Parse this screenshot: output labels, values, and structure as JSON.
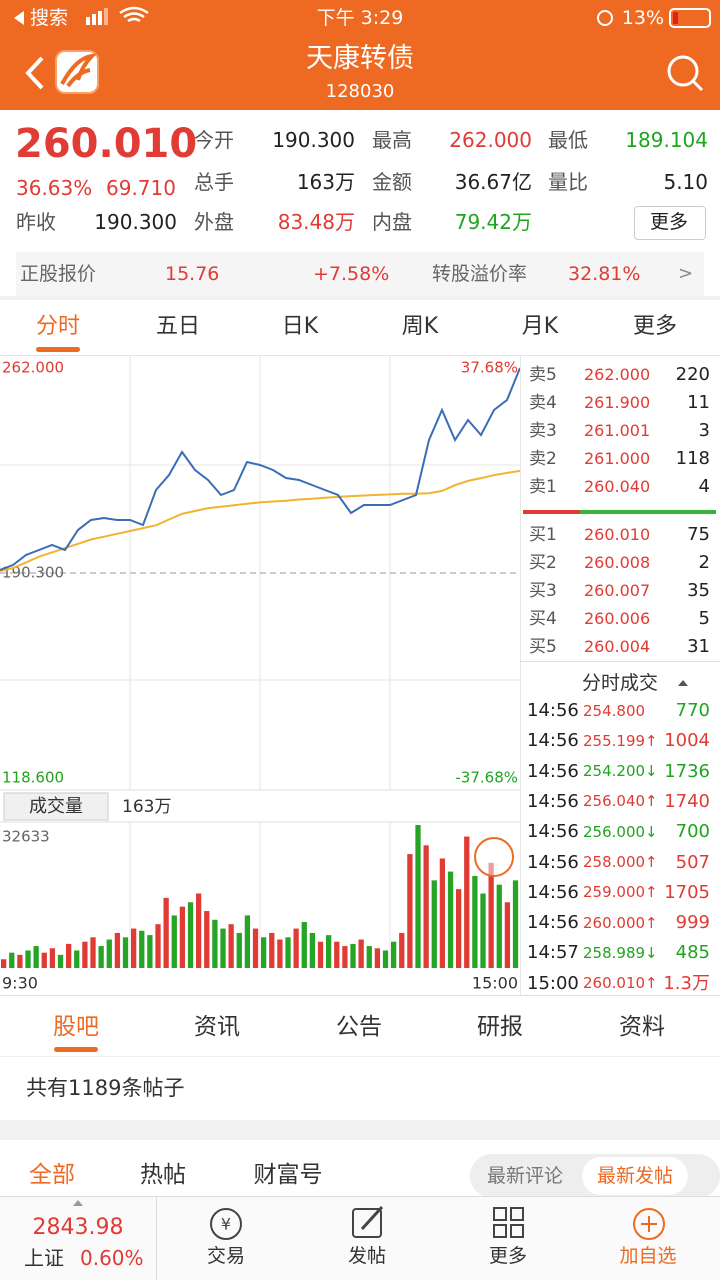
{
  "status_bar": {
    "carrier": "搜索",
    "time": "下午 3:29",
    "battery": "13%"
  },
  "header": {
    "title": "天康转债",
    "code": "128030"
  },
  "quote": {
    "price": "260.010",
    "change_pct": "36.63%",
    "change": "69.710",
    "fields": [
      {
        "label": "今开",
        "value": "190.300"
      },
      {
        "label": "最高",
        "value": "262.000"
      },
      {
        "label": "最低",
        "value": "189.104"
      },
      {
        "label": "总手",
        "value": "163万"
      },
      {
        "label": "金额",
        "value": "36.67亿"
      },
      {
        "label": "量比",
        "value": "5.10"
      },
      {
        "label": "昨收",
        "value": "190.300"
      },
      {
        "label": "外盘",
        "value": "83.48万"
      },
      {
        "label": "内盘",
        "value": "79.42万"
      }
    ],
    "more": "更多"
  },
  "stock_row": {
    "label": "正股报价",
    "price": "15.76",
    "change": "+7.58%",
    "premium_label": "转股溢价率",
    "premium": "32.81%",
    "arrow": ">"
  },
  "chart_tabs": [
    "分时",
    "五日",
    "日K",
    "周K",
    "月K",
    "更多"
  ],
  "chart_data": [
    {
      "type": "line",
      "ylim": [
        118.6,
        262.0
      ],
      "yticks": [
        {
          "value": 118.6,
          "label": "118.600"
        },
        {
          "value": 190.3,
          "label": "190.300"
        },
        {
          "value": 262.0,
          "label": "262.000"
        }
      ],
      "y2lim": [
        -37.68,
        37.68
      ],
      "y2ticks": [
        {
          "value": -37.68,
          "label": "-37.68%"
        },
        {
          "value": 37.68,
          "label": "37.68%"
        }
      ],
      "series": [
        {
          "color": "#3a6db5",
          "values": [
            191.34,
            193.09,
            196.59,
            198.34,
            200.09,
            198.34,
            205.33,
            208.83,
            209.53,
            208.83,
            208.83,
            207.08,
            219.32,
            224.57,
            232.62,
            226.32,
            222.82,
            217.58,
            219.32,
            229.12,
            228.07,
            226.32,
            223.52,
            222.82,
            221.07,
            219.32,
            217.58,
            211.28,
            214.08,
            214.08,
            214.08,
            215.83,
            217.58,
            236.81,
            247.31,
            236.81,
            243.81,
            238.56,
            247.31,
            250.81,
            262.0
          ]
        },
        {
          "color": "#f4b22e",
          "values": [
            191,
            192,
            194,
            196,
            197.5,
            199,
            200.5,
            202,
            203,
            204,
            205,
            206,
            207,
            209,
            211,
            212,
            213,
            213.5,
            214,
            214.5,
            215,
            215.3,
            215.6,
            216,
            216.3,
            216.6,
            216.9,
            217.2,
            217.4,
            217.6,
            217.8,
            218,
            218,
            218.2,
            219,
            221,
            222.5,
            223.5,
            224.5,
            225.3,
            226
          ]
        }
      ]
    },
    {
      "type": "bar",
      "label": "成交量",
      "total": "163万",
      "ylim": [
        0,
        32633
      ],
      "yticks": [
        32633
      ],
      "x_labels": [
        "9:30",
        "15:00"
      ],
      "values": [
        2000,
        3500,
        3000,
        4000,
        5000,
        3500,
        4500,
        3000,
        5500,
        4000,
        6000,
        7000,
        5000,
        6500,
        8000,
        7000,
        9000,
        8500,
        7500,
        10000,
        16000,
        12000,
        14000,
        15000,
        17000,
        13000,
        11000,
        9000,
        10000,
        8000,
        12000,
        9000,
        7000,
        8000,
        6500,
        7000,
        9000,
        10500,
        8000,
        6000,
        7500,
        6000,
        5000,
        5500,
        6500,
        5000,
        4500,
        4000,
        6000,
        8000,
        26000,
        32633,
        28000,
        20000,
        25000,
        22000,
        18000,
        30000,
        21000,
        17000,
        24000,
        19000,
        15000,
        20000
      ],
      "colors": [
        "#e03b35",
        "#26a426",
        "#e03b35",
        "#26a426",
        "#26a426",
        "#e03b35",
        "#e03b35",
        "#26a426",
        "#e03b35",
        "#26a426",
        "#e03b35",
        "#e03b35",
        "#26a426",
        "#26a426",
        "#e03b35",
        "#26a426",
        "#e03b35",
        "#26a426",
        "#26a426",
        "#e03b35",
        "#e03b35",
        "#26a426",
        "#e03b35",
        "#26a426",
        "#e03b35",
        "#e03b35",
        "#26a426",
        "#26a426",
        "#e03b35",
        "#26a426",
        "#26a426",
        "#e03b35",
        "#26a426",
        "#e03b35",
        "#e03b35",
        "#26a426",
        "#e03b35",
        "#26a426",
        "#26a426",
        "#e03b35",
        "#26a426",
        "#e03b35",
        "#e03b35",
        "#26a426",
        "#e03b35",
        "#26a426",
        "#e03b35",
        "#26a426",
        "#26a426",
        "#e03b35",
        "#e03b35",
        "#26a426",
        "#e03b35",
        "#26a426",
        "#e03b35",
        "#26a426",
        "#e03b35",
        "#e03b35",
        "#26a426",
        "#26a426",
        "#e03b35",
        "#26a426",
        "#e03b35",
        "#26a426"
      ]
    }
  ],
  "order_book": {
    "sell": [
      {
        "label": "卖5",
        "price": "262.000",
        "qty": "220"
      },
      {
        "label": "卖4",
        "price": "261.900",
        "qty": "11"
      },
      {
        "label": "卖3",
        "price": "261.001",
        "qty": "3"
      },
      {
        "label": "卖2",
        "price": "261.000",
        "qty": "118"
      },
      {
        "label": "卖1",
        "price": "260.040",
        "qty": "4"
      }
    ],
    "buy": [
      {
        "label": "买1",
        "price": "260.010",
        "qty": "75"
      },
      {
        "label": "买2",
        "price": "260.008",
        "qty": "2"
      },
      {
        "label": "买3",
        "price": "260.007",
        "qty": "35"
      },
      {
        "label": "买4",
        "price": "260.006",
        "qty": "5"
      },
      {
        "label": "买5",
        "price": "260.004",
        "qty": "31"
      }
    ]
  },
  "trades": {
    "title": "分时成交",
    "rows": [
      {
        "time": "14:56",
        "price": "254.800",
        "qty": "770"
      },
      {
        "time": "14:56",
        "price": "255.199↑",
        "qty": "1004"
      },
      {
        "time": "14:56",
        "price": "254.200↓",
        "qty": "1736"
      },
      {
        "time": "14:56",
        "price": "256.040↑",
        "qty": "1740"
      },
      {
        "time": "14:56",
        "price": "256.000↓",
        "qty": "700"
      },
      {
        "time": "14:56",
        "price": "258.000↑",
        "qty": "507"
      },
      {
        "time": "14:56",
        "price": "259.000↑",
        "qty": "1705"
      },
      {
        "time": "14:56",
        "price": "260.000↑",
        "qty": "999"
      },
      {
        "time": "14:57",
        "price": "258.989↓",
        "qty": "485"
      },
      {
        "time": "15:00",
        "price": "260.010↑",
        "qty": "1.3万"
      }
    ]
  },
  "info_tabs": [
    "股吧",
    "资讯",
    "公告",
    "研报",
    "资料"
  ],
  "post_count": "共有1189条帖子",
  "filter_tabs": [
    "全部",
    "热帖",
    "财富号"
  ],
  "sort_options": [
    "最新评论",
    "最新发帖"
  ],
  "index": {
    "value": "2843.98",
    "name": "上证",
    "change": "0.60%"
  },
  "nav": [
    "交易",
    "发帖",
    "更多",
    "加自选"
  ]
}
